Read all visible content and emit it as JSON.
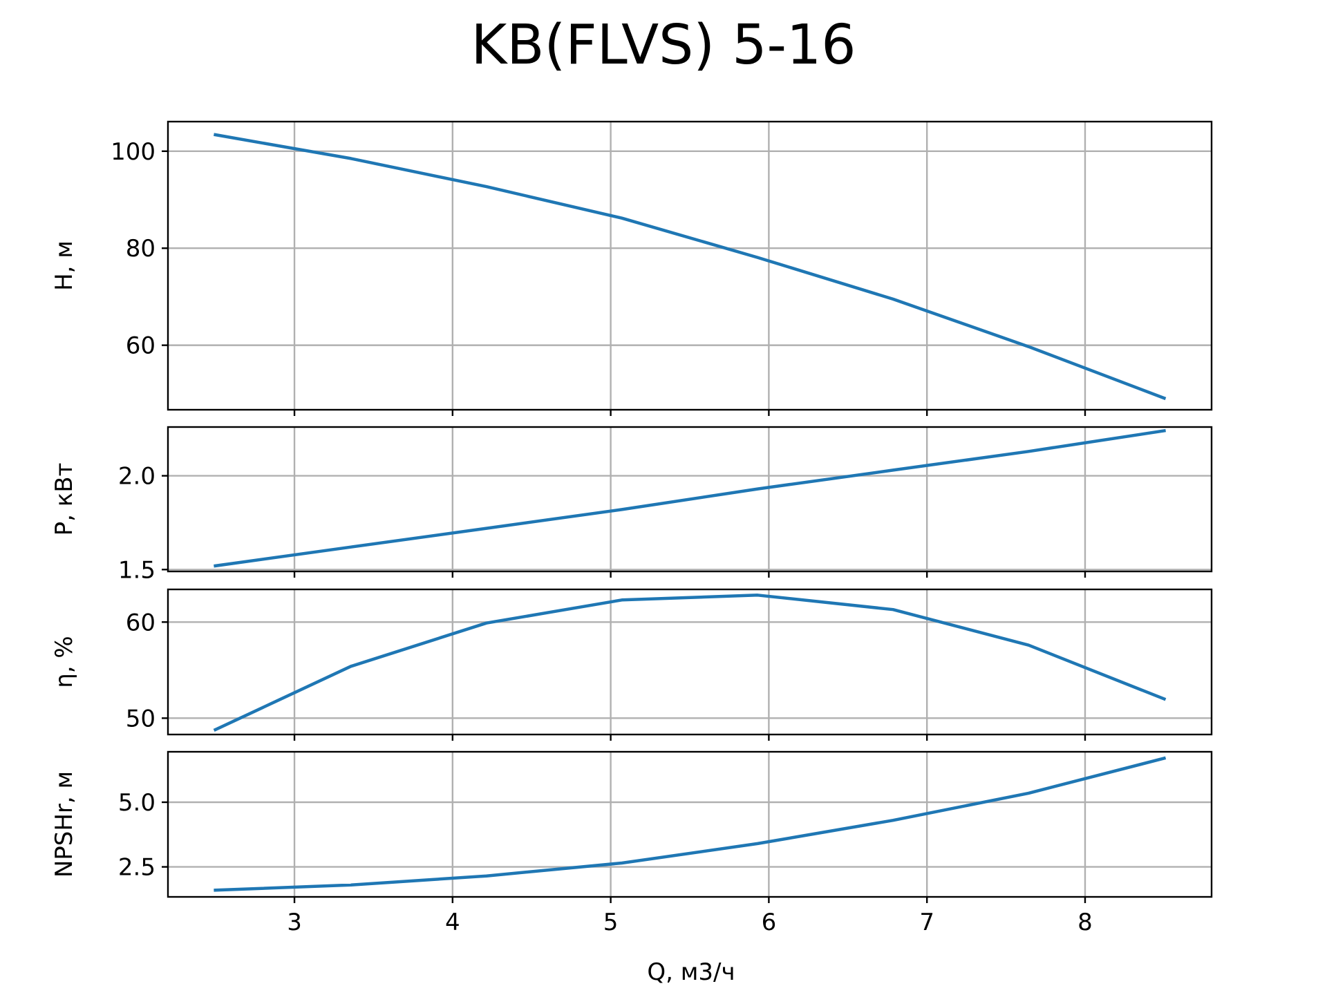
{
  "chart_data": {
    "type": "line",
    "title": "KB(FLVS) 5-16",
    "xlabel": "Q, м3/ч",
    "xlim": [
      2.2,
      8.8
    ],
    "xticks": [
      3,
      4,
      5,
      6,
      7,
      8
    ],
    "xtick_labels": [
      "3",
      "4",
      "5",
      "6",
      "7",
      "8"
    ],
    "grid": true,
    "x": [
      2.5,
      3.357,
      4.214,
      5.071,
      5.929,
      6.786,
      7.643,
      8.5
    ],
    "panels": [
      {
        "ylabel": "H, м",
        "ylim": [
          46.7,
          106.1
        ],
        "yticks": [
          60,
          80,
          100
        ],
        "ytick_labels": [
          "60",
          "80",
          "100"
        ],
        "values": [
          103.4,
          98.5,
          92.7,
          86.2,
          78.1,
          69.5,
          59.7,
          49.1
        ]
      },
      {
        "ylabel": "P, кВт",
        "ylim": [
          1.49,
          2.26
        ],
        "yticks": [
          1.5,
          2.0
        ],
        "ytick_labels": [
          "1.5",
          "2.0"
        ],
        "values": [
          1.52,
          1.62,
          1.72,
          1.82,
          1.93,
          2.03,
          2.13,
          2.24
        ]
      },
      {
        "ylabel": "η, %",
        "ylim": [
          48.3,
          63.4
        ],
        "yticks": [
          50,
          60
        ],
        "ytick_labels": [
          "50",
          "60"
        ],
        "values": [
          48.8,
          55.4,
          59.9,
          62.3,
          62.8,
          61.3,
          57.6,
          52.0
        ]
      },
      {
        "ylabel": "NPSHr, м",
        "ylim": [
          1.34,
          6.95
        ],
        "yticks": [
          2.5,
          5.0
        ],
        "ytick_labels": [
          "2.5",
          "5.0"
        ],
        "values": [
          1.6,
          1.8,
          2.15,
          2.65,
          3.4,
          4.3,
          5.35,
          6.7
        ]
      }
    ]
  }
}
